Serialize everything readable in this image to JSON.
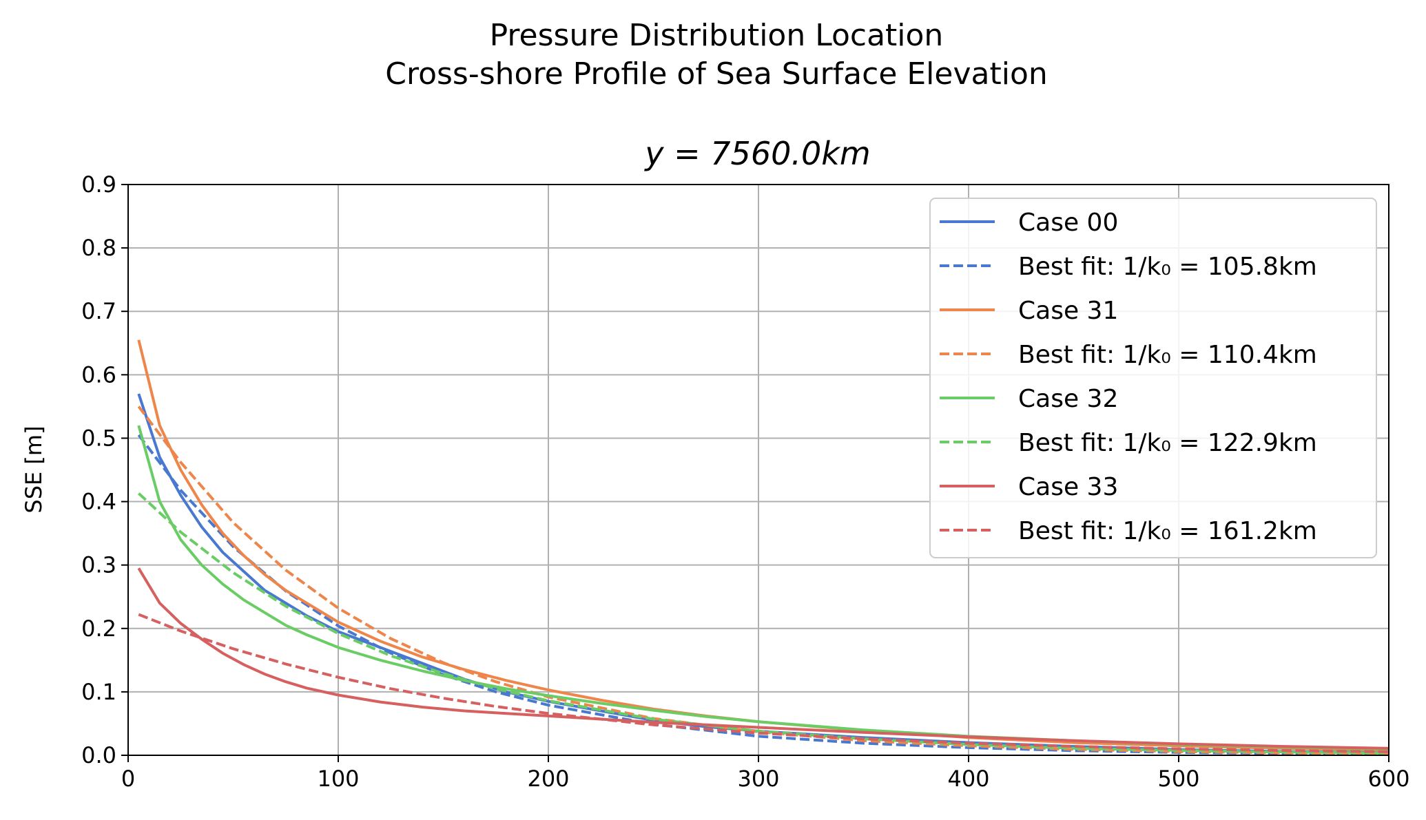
{
  "chart_data": {
    "type": "line",
    "title": "Pressure Distribution Location",
    "subtitle": "Cross-shore Profile of Sea Surface Elevation",
    "axes_title": "y = 7560.0km",
    "xlabel": "",
    "ylabel": "SSE [m]",
    "xlim": [
      0,
      600
    ],
    "ylim": [
      0,
      0.9
    ],
    "xticks": [
      0,
      100,
      200,
      300,
      400,
      500,
      600
    ],
    "yticks": [
      0.0,
      0.1,
      0.2,
      0.3,
      0.4,
      0.5,
      0.6,
      0.7,
      0.8,
      0.9
    ],
    "grid": true,
    "legend_position": "top-right",
    "series": [
      {
        "name": "Case 00",
        "color": "#4878d0",
        "style": "solid",
        "x": [
          5,
          15,
          25,
          35,
          45,
          55,
          65,
          75,
          85,
          100,
          120,
          140,
          160,
          180,
          200,
          225,
          250,
          275,
          300,
          350,
          400,
          450,
          500,
          550,
          600
        ],
        "y": [
          0.57,
          0.47,
          0.41,
          0.36,
          0.32,
          0.29,
          0.26,
          0.24,
          0.22,
          0.195,
          0.17,
          0.145,
          0.12,
          0.1,
          0.085,
          0.07,
          0.055,
          0.045,
          0.038,
          0.028,
          0.02,
          0.014,
          0.009,
          0.006,
          0.004
        ]
      },
      {
        "name": "Best fit: 1/k0 = 105.8km",
        "color": "#4878d0",
        "style": "dashed",
        "x": [
          5,
          25,
          50,
          75,
          100,
          125,
          150,
          175,
          200,
          250,
          300,
          350,
          400,
          450,
          500,
          550,
          600
        ],
        "y": [
          0.505,
          0.418,
          0.329,
          0.259,
          0.204,
          0.161,
          0.127,
          0.1,
          0.079,
          0.049,
          0.03,
          0.019,
          0.012,
          0.0073,
          0.0045,
          0.0028,
          0.0018
        ]
      },
      {
        "name": "Case 31",
        "color": "#ee854a",
        "style": "solid",
        "x": [
          5,
          15,
          25,
          35,
          45,
          55,
          65,
          75,
          85,
          100,
          120,
          140,
          160,
          180,
          200,
          225,
          250,
          275,
          300,
          350,
          400,
          450,
          500,
          550,
          600
        ],
        "y": [
          0.655,
          0.52,
          0.45,
          0.395,
          0.35,
          0.315,
          0.285,
          0.26,
          0.24,
          0.21,
          0.18,
          0.155,
          0.135,
          0.118,
          0.103,
          0.087,
          0.073,
          0.062,
          0.053,
          0.039,
          0.028,
          0.02,
          0.015,
          0.011,
          0.008
        ]
      },
      {
        "name": "Best fit: 1/k0 = 110.4km",
        "color": "#ee854a",
        "style": "dashed",
        "x": [
          5,
          25,
          50,
          75,
          100,
          125,
          150,
          175,
          200,
          250,
          300,
          350,
          400,
          450,
          500,
          550,
          600
        ],
        "y": [
          0.55,
          0.462,
          0.367,
          0.292,
          0.232,
          0.184,
          0.146,
          0.116,
          0.092,
          0.058,
          0.037,
          0.023,
          0.015,
          0.0093,
          0.0059,
          0.0037,
          0.0024
        ]
      },
      {
        "name": "Case 32",
        "color": "#6acc64",
        "style": "solid",
        "x": [
          5,
          15,
          25,
          35,
          45,
          55,
          65,
          75,
          85,
          100,
          120,
          140,
          160,
          180,
          200,
          225,
          250,
          275,
          300,
          350,
          400,
          450,
          500,
          550,
          600
        ],
        "y": [
          0.52,
          0.4,
          0.34,
          0.3,
          0.27,
          0.245,
          0.225,
          0.205,
          0.19,
          0.17,
          0.15,
          0.133,
          0.118,
          0.105,
          0.094,
          0.082,
          0.071,
          0.061,
          0.053,
          0.04,
          0.03,
          0.023,
          0.017,
          0.013,
          0.01
        ]
      },
      {
        "name": "Best fit: 1/k0 = 122.9km",
        "color": "#6acc64",
        "style": "dashed",
        "x": [
          5,
          25,
          50,
          75,
          100,
          125,
          150,
          175,
          200,
          250,
          300,
          350,
          400,
          450,
          500,
          550,
          600
        ],
        "y": [
          0.413,
          0.352,
          0.288,
          0.235,
          0.192,
          0.157,
          0.129,
          0.105,
          0.086,
          0.057,
          0.038,
          0.026,
          0.017,
          0.011,
          0.0076,
          0.0051,
          0.0034
        ]
      },
      {
        "name": "Case 33",
        "color": "#d65f5f",
        "style": "solid",
        "x": [
          5,
          15,
          25,
          35,
          45,
          55,
          65,
          75,
          85,
          100,
          120,
          140,
          160,
          180,
          200,
          225,
          250,
          275,
          300,
          350,
          400,
          450,
          500,
          550,
          600
        ],
        "y": [
          0.295,
          0.24,
          0.208,
          0.183,
          0.161,
          0.143,
          0.128,
          0.116,
          0.106,
          0.095,
          0.084,
          0.076,
          0.07,
          0.066,
          0.062,
          0.057,
          0.052,
          0.048,
          0.044,
          0.036,
          0.029,
          0.023,
          0.018,
          0.014,
          0.011
        ]
      },
      {
        "name": "Best fit: 1/k0 = 161.2km",
        "color": "#d65f5f",
        "style": "dashed",
        "x": [
          5,
          25,
          50,
          75,
          100,
          125,
          150,
          175,
          200,
          250,
          300,
          350,
          400,
          450,
          500,
          550,
          600
        ],
        "y": [
          0.222,
          0.196,
          0.168,
          0.144,
          0.123,
          0.105,
          0.09,
          0.077,
          0.066,
          0.048,
          0.035,
          0.026,
          0.019,
          0.014,
          0.0102,
          0.0075,
          0.0055
        ]
      }
    ],
    "legend": {
      "entries": [
        {
          "label": "Case 00",
          "color": "#4878d0",
          "style": "solid"
        },
        {
          "label": "Best fit: 1/k₀ = 105.8km",
          "color": "#4878d0",
          "style": "dashed"
        },
        {
          "label": "Case 31",
          "color": "#ee854a",
          "style": "solid"
        },
        {
          "label": "Best fit: 1/k₀ = 110.4km",
          "color": "#ee854a",
          "style": "dashed"
        },
        {
          "label": "Case 32",
          "color": "#6acc64",
          "style": "solid"
        },
        {
          "label": "Best fit: 1/k₀ = 122.9km",
          "color": "#6acc64",
          "style": "dashed"
        },
        {
          "label": "Case 33",
          "color": "#d65f5f",
          "style": "solid"
        },
        {
          "label": "Best fit: 1/k₀ = 161.2km",
          "color": "#d65f5f",
          "style": "dashed"
        }
      ]
    }
  }
}
